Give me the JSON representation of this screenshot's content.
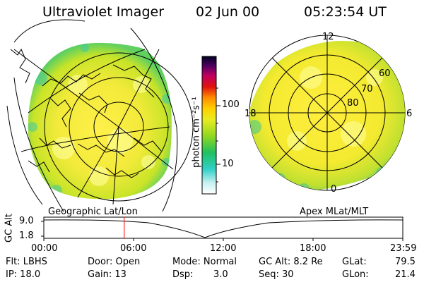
{
  "header": {
    "title": "Ultraviolet Imager",
    "date": "02 Jun 00",
    "time": "05:23:54 UT"
  },
  "colorbar": {
    "ticks": [
      "100",
      "10"
    ],
    "unit_label": "photon cm⁻²s⁻¹"
  },
  "left_map": {
    "caption": "Geographic Lat/Lon"
  },
  "right_map": {
    "caption": "Apex MLat/MLT",
    "mlt_labels": [
      "12",
      "18",
      "6",
      "0"
    ],
    "mlat_labels": [
      "60",
      "70",
      "80"
    ]
  },
  "alt_plot": {
    "ylabel": "GC Alt",
    "yticks": [
      "9.0",
      "1.8"
    ],
    "xticks": [
      "00:00",
      "06:00",
      "12:00",
      "18:00",
      "23:59"
    ],
    "marker_time_fraction": 0.224
  },
  "info": {
    "filter": "Flt: LBHS",
    "ip": "IP: 18.0",
    "door": "Door: Open",
    "gain": "Gain: 13",
    "mode": "Mode: Normal",
    "dsp_label": "Dsp:",
    "dsp_value": "3.0",
    "gc_alt": "GC Alt: 8.2 Re",
    "seq": "Seq: 30",
    "glat_label": "GLat:",
    "glat_value": "79.5",
    "glon_label": "GLon:",
    "glon_value": "21.4"
  },
  "colors": {
    "background": "#ffffff",
    "marker": "#ff0000",
    "emission_low": "#30c8a0",
    "emission_mid": "#c8e620",
    "emission_high": "#ffec3c"
  }
}
